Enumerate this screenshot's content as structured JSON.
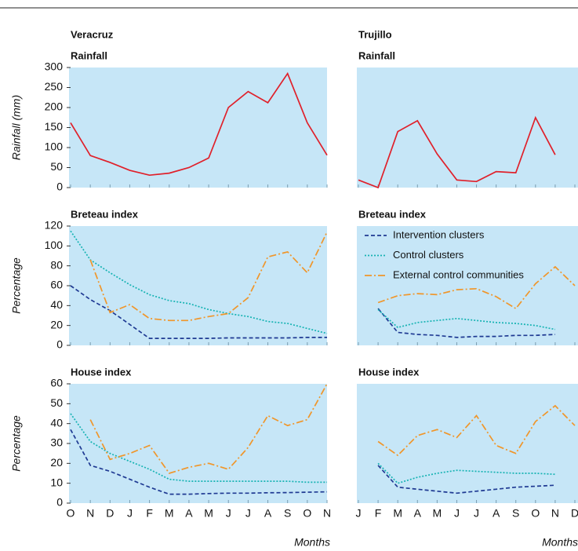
{
  "chart_data": [
    {
      "type": "line",
      "location": "Veracruz",
      "title": "Rainfall",
      "ylabel": "Rainfall (mm)",
      "categories": [
        "O",
        "N",
        "D",
        "J",
        "F",
        "M",
        "A",
        "M",
        "J",
        "J",
        "A",
        "S",
        "O",
        "N"
      ],
      "ylim": [
        0,
        300
      ],
      "yticks": [
        0,
        50,
        100,
        150,
        200,
        250,
        300
      ],
      "series": [
        {
          "color": "#e0202a",
          "style": "solid",
          "values": [
            162,
            80,
            63,
            43,
            31,
            36,
            50,
            74,
            200,
            240,
            212,
            285,
            162,
            81
          ]
        }
      ]
    },
    {
      "type": "line",
      "location": "Trujillo",
      "title": "Rainfall",
      "categories": [
        "J",
        "F",
        "M",
        "A",
        "M",
        "J",
        "J",
        "A",
        "S",
        "O",
        "N",
        "D"
      ],
      "ylim": [
        0,
        300
      ],
      "series": [
        {
          "color": "#e0202a",
          "style": "solid",
          "values": [
            19,
            0,
            140,
            167,
            84,
            19,
            15,
            40,
            37,
            175,
            82,
            null
          ]
        }
      ]
    },
    {
      "type": "line",
      "title": "Breteau index",
      "ylabel": "Percentage",
      "categories": [
        "O",
        "N",
        "D",
        "J",
        "F",
        "M",
        "A",
        "M",
        "J",
        "J",
        "A",
        "S",
        "O",
        "N"
      ],
      "ylim": [
        0,
        120
      ],
      "yticks": [
        0,
        20,
        40,
        60,
        80,
        100,
        120
      ],
      "series": [
        {
          "color": "#1f3a93",
          "style": "dashed",
          "values": [
            60,
            46,
            35,
            21,
            7,
            7,
            7,
            7,
            7.5,
            7.5,
            7.5,
            7.5,
            8,
            8
          ]
        },
        {
          "color": "#17b3b3",
          "style": "dotted",
          "values": [
            115,
            86,
            73,
            61,
            51,
            45,
            42,
            36,
            32,
            29,
            24,
            22,
            17,
            12
          ]
        },
        {
          "color": "#f0962a",
          "style": "dashdot",
          "values": [
            null,
            86,
            33,
            41,
            27,
            25,
            25,
            29,
            32,
            48,
            89,
            94,
            73,
            114
          ]
        }
      ]
    },
    {
      "type": "line",
      "title": "Breteau index",
      "legend": "upper left",
      "categories": [
        "J",
        "F",
        "M",
        "A",
        "M",
        "J",
        "J",
        "A",
        "S",
        "O",
        "N",
        "D"
      ],
      "ylim": [
        0,
        120
      ],
      "series": [
        {
          "name": "Intervention clusters",
          "color": "#1f3a93",
          "style": "dashed",
          "values": [
            null,
            37,
            13,
            11,
            10,
            8,
            9,
            9,
            10,
            10,
            11,
            null
          ]
        },
        {
          "name": "Control clusters",
          "color": "#17b3b3",
          "style": "dotted",
          "values": [
            null,
            36,
            18,
            23,
            25,
            27,
            25,
            23,
            22,
            20,
            16,
            null
          ]
        },
        {
          "name": "External control communities",
          "color": "#f0962a",
          "style": "dashdot",
          "values": [
            null,
            43,
            50,
            52,
            51,
            56,
            57,
            49,
            37,
            62,
            79,
            60
          ]
        }
      ]
    },
    {
      "type": "line",
      "title": "House index",
      "ylabel": "Percentage",
      "xlabel": "Months",
      "categories": [
        "O",
        "N",
        "D",
        "J",
        "F",
        "M",
        "A",
        "M",
        "J",
        "J",
        "A",
        "S",
        "O",
        "N"
      ],
      "ylim": [
        0,
        60
      ],
      "yticks": [
        0,
        10,
        20,
        30,
        40,
        50,
        60
      ],
      "series": [
        {
          "color": "#1f3a93",
          "style": "dashed",
          "values": [
            37,
            19,
            16,
            12,
            8,
            4.5,
            4.5,
            4.8,
            5,
            5,
            5.2,
            5.3,
            5.5,
            5.7
          ]
        },
        {
          "color": "#17b3b3",
          "style": "dotted",
          "values": [
            45,
            31,
            25,
            21,
            17,
            12,
            11,
            11,
            11,
            11,
            11,
            11,
            10.5,
            10.5
          ]
        },
        {
          "color": "#f0962a",
          "style": "dashdot",
          "values": [
            null,
            42,
            22,
            25,
            29,
            15,
            18,
            20,
            17,
            28,
            44,
            39,
            42,
            60
          ]
        }
      ]
    },
    {
      "type": "line",
      "title": "House index",
      "xlabel": "Months",
      "categories": [
        "J",
        "F",
        "M",
        "A",
        "M",
        "J",
        "J",
        "A",
        "S",
        "O",
        "N",
        "D"
      ],
      "ylim": [
        0,
        60
      ],
      "series": [
        {
          "color": "#1f3a93",
          "style": "dashed",
          "values": [
            null,
            19,
            8,
            7,
            6,
            5,
            6,
            7,
            8,
            8.5,
            9,
            null
          ]
        },
        {
          "color": "#17b3b3",
          "style": "dotted",
          "values": [
            null,
            20,
            10,
            13,
            15,
            16.5,
            16,
            15.5,
            15,
            15,
            14.5,
            null
          ]
        },
        {
          "color": "#f0962a",
          "style": "dashdot",
          "values": [
            null,
            31,
            24,
            34,
            37,
            33,
            44,
            29,
            25,
            41,
            49,
            39
          ]
        }
      ]
    }
  ]
}
